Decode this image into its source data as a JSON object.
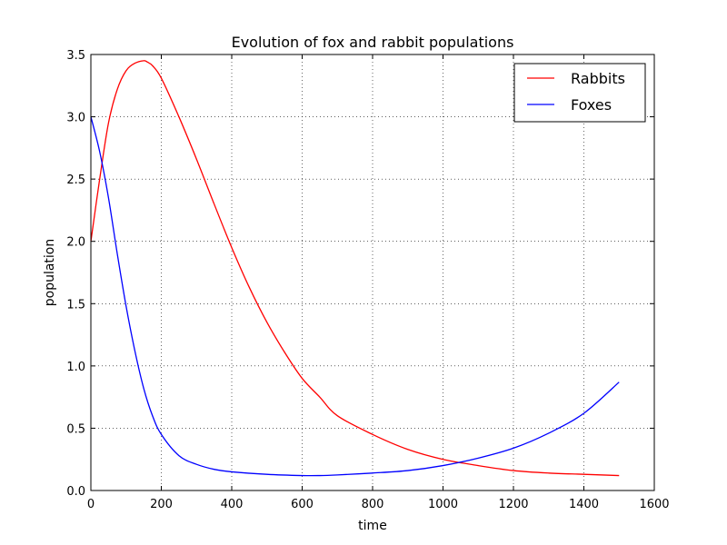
{
  "chart_data": {
    "type": "line",
    "title": "Evolution of fox and rabbit populations",
    "xlabel": "time",
    "ylabel": "population",
    "xlim": [
      0,
      1600
    ],
    "ylim": [
      0,
      3.5
    ],
    "xticks": [
      0,
      200,
      400,
      600,
      800,
      1000,
      1200,
      1400,
      1600
    ],
    "yticks": [
      0.0,
      0.5,
      1.0,
      1.5,
      2.0,
      2.5,
      3.0,
      3.5
    ],
    "xtick_labels": [
      "0",
      "200",
      "400",
      "600",
      "800",
      "1000",
      "1200",
      "1400",
      "1600"
    ],
    "ytick_labels": [
      "0.0",
      "0.5",
      "1.0",
      "1.5",
      "2.0",
      "2.5",
      "3.0",
      "3.5"
    ],
    "grid": true,
    "legend_position": "top-right",
    "series": [
      {
        "name": "Rabbits",
        "color": "#ff0000",
        "x": [
          0,
          25,
          50,
          75,
          100,
          125,
          150,
          160,
          175,
          200,
          250,
          300,
          350,
          400,
          450,
          500,
          550,
          600,
          650,
          700,
          800,
          900,
          1000,
          1100,
          1200,
          1300,
          1400,
          1500
        ],
        "y": [
          2.0,
          2.5,
          2.95,
          3.22,
          3.37,
          3.43,
          3.45,
          3.44,
          3.41,
          3.31,
          3.0,
          2.66,
          2.3,
          1.95,
          1.63,
          1.35,
          1.11,
          0.9,
          0.75,
          0.6,
          0.45,
          0.33,
          0.25,
          0.2,
          0.16,
          0.14,
          0.13,
          0.12
        ]
      },
      {
        "name": "Foxes",
        "color": "#0000ff",
        "x": [
          0,
          25,
          50,
          75,
          100,
          125,
          150,
          175,
          200,
          250,
          300,
          350,
          400,
          500,
          600,
          650,
          700,
          800,
          900,
          1000,
          1100,
          1200,
          1300,
          1400,
          1500
        ],
        "y": [
          3.0,
          2.72,
          2.35,
          1.9,
          1.48,
          1.12,
          0.82,
          0.6,
          0.45,
          0.28,
          0.21,
          0.17,
          0.15,
          0.13,
          0.12,
          0.12,
          0.125,
          0.14,
          0.16,
          0.2,
          0.26,
          0.34,
          0.46,
          0.62,
          0.87
        ]
      }
    ]
  }
}
